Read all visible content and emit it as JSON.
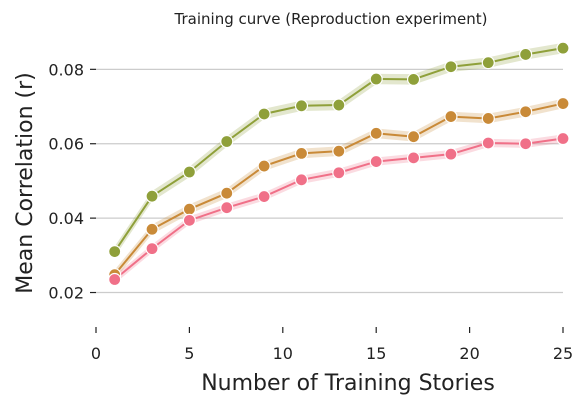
{
  "chart_data": {
    "type": "line",
    "title": "Training curve (Reproduction experiment)",
    "xlabel": "Number of Training Stories",
    "ylabel": "Mean Correlation (r)",
    "xlim": [
      0,
      25
    ],
    "ylim": [
      0.011,
      0.0895
    ],
    "xticks": [
      0,
      5,
      10,
      15,
      20,
      25
    ],
    "yticks": [
      0.02,
      0.04,
      0.06,
      0.08
    ],
    "ytick_labels": [
      "0.02",
      "0.04",
      "0.06",
      "0.08"
    ],
    "grid": "horizontal",
    "x": [
      1,
      3,
      5,
      7,
      9,
      11,
      13,
      15,
      17,
      19,
      21,
      23,
      25
    ],
    "series": [
      {
        "color": "#8fa03a",
        "values": [
          0.031,
          0.0459,
          0.0524,
          0.0606,
          0.068,
          0.0702,
          0.0704,
          0.0774,
          0.0773,
          0.0807,
          0.0818,
          0.084,
          0.0857
        ],
        "band": 0.0014
      },
      {
        "color": "#c98a38",
        "values": [
          0.0248,
          0.037,
          0.0424,
          0.0467,
          0.054,
          0.0574,
          0.058,
          0.0628,
          0.0619,
          0.0673,
          0.0668,
          0.0686,
          0.0708
        ],
        "band": 0.0013
      },
      {
        "color": "#f07088",
        "values": [
          0.0235,
          0.0318,
          0.0394,
          0.0428,
          0.0458,
          0.0503,
          0.0522,
          0.0552,
          0.0562,
          0.0572,
          0.0602,
          0.06,
          0.0614
        ],
        "band": 0.0011
      }
    ]
  }
}
